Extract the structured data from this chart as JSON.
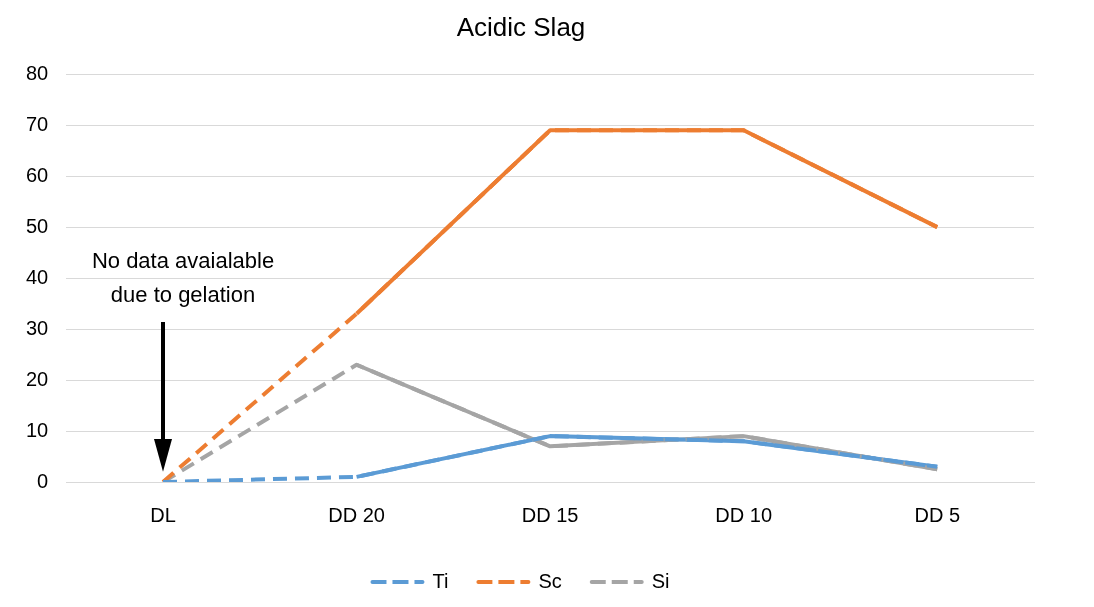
{
  "chart_data": {
    "type": "line",
    "title": "Acidic Slag",
    "categories": [
      "DL",
      "DD 20",
      "DD 15",
      "DD 10",
      "DD 5"
    ],
    "series": [
      {
        "name": "Ti",
        "color": "#5b9bd5",
        "values": [
          0,
          1,
          9,
          8,
          3
        ],
        "line_style": "dashed"
      },
      {
        "name": "Sc",
        "color": "#ed7d31",
        "values": [
          0,
          33,
          69,
          69,
          50
        ],
        "line_style": "dashed"
      },
      {
        "name": "Si",
        "color": "#a5a5a5",
        "values": [
          0,
          23,
          7,
          9,
          2.5
        ],
        "line_style": "dashed"
      },
      {
        "color": "#5b9bd5",
        "values": [
          null,
          1,
          9,
          8,
          3
        ],
        "line_style": "solid"
      },
      {
        "color": "#ed7d31",
        "values": [
          null,
          33,
          69,
          69,
          50
        ],
        "line_style": "solid"
      },
      {
        "color": "#a5a5a5",
        "values": [
          null,
          23,
          7,
          9,
          2.5
        ],
        "line_style": "solid"
      }
    ],
    "ylim": [
      0,
      80
    ],
    "yticks": [
      0,
      10,
      20,
      30,
      40,
      50,
      60,
      70,
      80
    ],
    "grid": "y",
    "legend": "bottom",
    "marker": "none",
    "annotations": [
      "No data avaialable due to gelation"
    ]
  }
}
